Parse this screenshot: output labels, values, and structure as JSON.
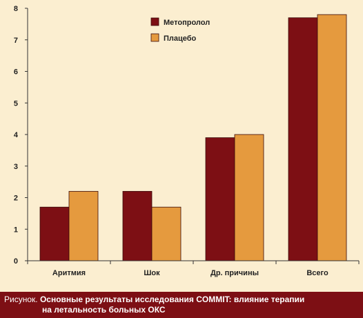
{
  "chart_data": {
    "type": "bar",
    "categories": [
      "Аритмия",
      "Шок",
      "Др. причины",
      "Всего"
    ],
    "series": [
      {
        "name": "Метопролол",
        "values": [
          1.7,
          2.2,
          3.9,
          7.7
        ],
        "color": "#7d0f14"
      },
      {
        "name": "Плацебо",
        "values": [
          2.2,
          1.7,
          4.0,
          7.8
        ],
        "color": "#e59a3e"
      }
    ],
    "ylim": [
      0,
      8
    ],
    "yticks": [
      0,
      1,
      2,
      3,
      4,
      5,
      6,
      7,
      8
    ],
    "grid": false,
    "legend": "top-center",
    "title": "",
    "xlabel": "",
    "ylabel": ""
  },
  "caption": {
    "prefix": "Рисунок.",
    "title_line1": "Основные результаты исследования COMMIT: влияние терапии",
    "title_line2": "на летальность больных ОКС"
  },
  "colors": {
    "background": "#fbeed0",
    "caption_background": "#7d0f14",
    "axis": "#333333"
  }
}
